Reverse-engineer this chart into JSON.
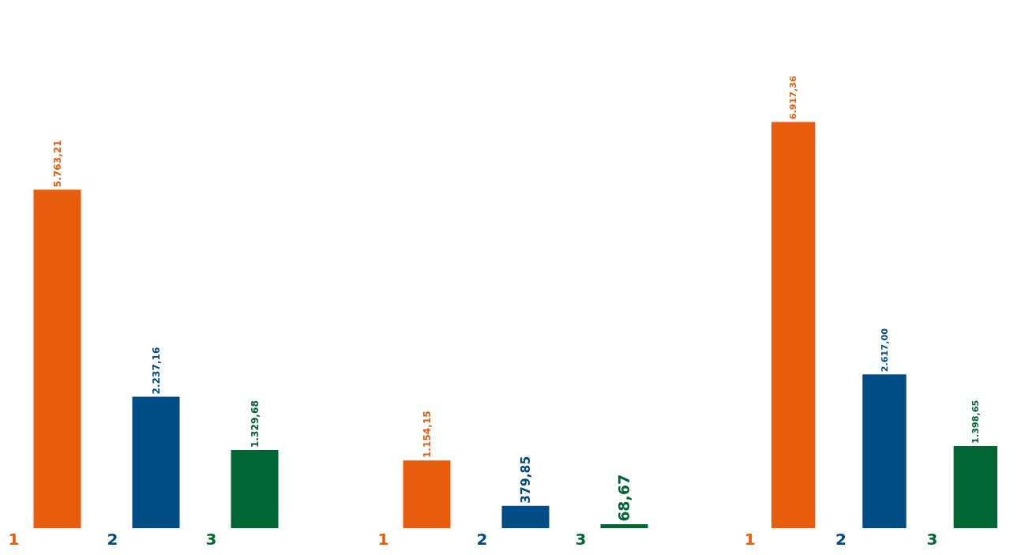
{
  "chart_data": [
    {
      "type": "bar",
      "categories": [
        "1",
        "2",
        "3"
      ],
      "values": [
        5763.21,
        2237.16,
        1329.68
      ],
      "colors": [
        "#e85c0d",
        "#004c87",
        "#006633"
      ],
      "value_labels": [
        "5.763,21",
        "2.237,16",
        "1.329,68"
      ]
    },
    {
      "type": "bar",
      "categories": [
        "1",
        "2",
        "3"
      ],
      "values": [
        1154.15,
        379.85,
        68.67
      ],
      "colors": [
        "#e85c0d",
        "#004c87",
        "#006633"
      ],
      "value_labels": [
        "1.154,15",
        "379,85",
        "68,67"
      ]
    },
    {
      "type": "bar",
      "categories": [
        "1",
        "2",
        "3"
      ],
      "values": [
        6917.36,
        2617.0,
        1398.65
      ],
      "colors": [
        "#e85c0d",
        "#004c87",
        "#006633"
      ],
      "value_labels": [
        "6.917,36",
        "2.617,00",
        "1.398,65"
      ]
    }
  ]
}
